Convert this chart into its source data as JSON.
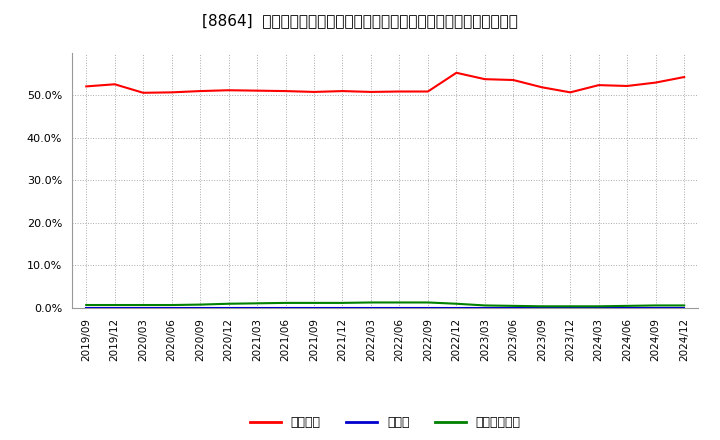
{
  "title": "[8864]  自己資本、のれん、繰延税金資産の総資産に対する比率の推移",
  "x_labels": [
    "2019/09",
    "2019/12",
    "2020/03",
    "2020/06",
    "2020/09",
    "2020/12",
    "2021/03",
    "2021/06",
    "2021/09",
    "2021/12",
    "2022/03",
    "2022/06",
    "2022/09",
    "2022/12",
    "2023/03",
    "2023/06",
    "2023/09",
    "2023/12",
    "2024/03",
    "2024/06",
    "2024/09",
    "2024/12"
  ],
  "equity_ratio": [
    0.521,
    0.526,
    0.506,
    0.507,
    0.51,
    0.512,
    0.511,
    0.51,
    0.508,
    0.51,
    0.508,
    0.509,
    0.509,
    0.553,
    0.538,
    0.536,
    0.519,
    0.507,
    0.524,
    0.522,
    0.53,
    0.543
  ],
  "goodwill_ratio": [
    0.0,
    0.0,
    0.0,
    0.0,
    0.0,
    0.0,
    0.0,
    0.0,
    0.0,
    0.0,
    0.0,
    0.0,
    0.0,
    0.0,
    0.0,
    0.0,
    0.0,
    0.0,
    0.0,
    0.0,
    0.0,
    0.0
  ],
  "deferred_tax_ratio": [
    0.007,
    0.007,
    0.007,
    0.007,
    0.008,
    0.01,
    0.011,
    0.012,
    0.012,
    0.012,
    0.013,
    0.013,
    0.013,
    0.01,
    0.006,
    0.005,
    0.004,
    0.004,
    0.004,
    0.005,
    0.006,
    0.006
  ],
  "equity_color": "#ff0000",
  "goodwill_color": "#0000cd",
  "deferred_tax_color": "#008000",
  "background_color": "#ffffff",
  "grid_color": "#aaaaaa",
  "legend_labels": [
    "自己資本",
    "のれん",
    "繰延税金資産"
  ],
  "ylim": [
    0.0,
    0.6
  ],
  "yticks": [
    0.0,
    0.1,
    0.2,
    0.3,
    0.4,
    0.5
  ]
}
